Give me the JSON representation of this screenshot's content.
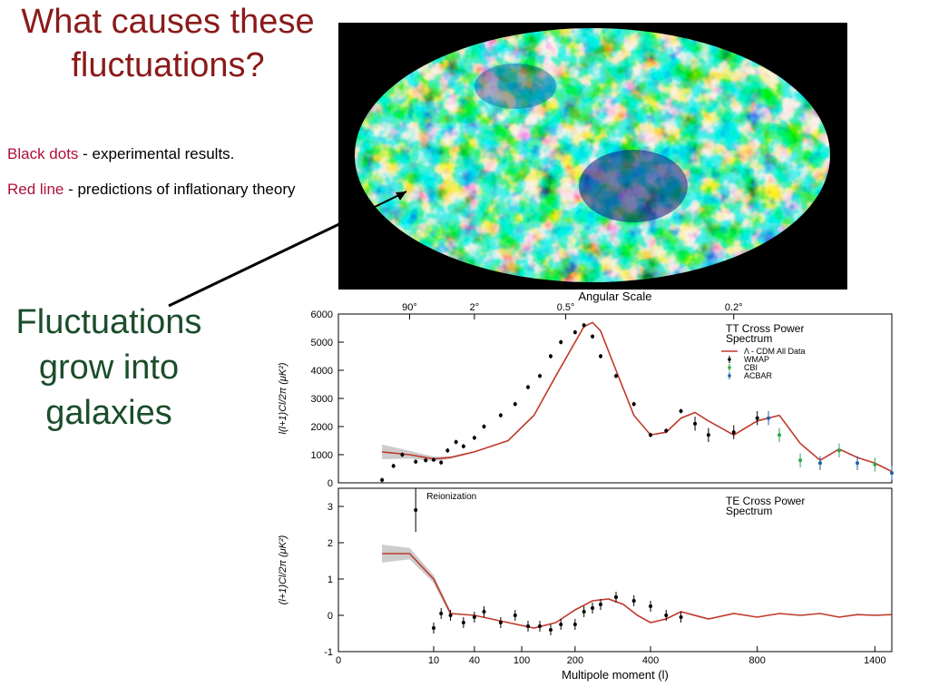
{
  "slide": {
    "title_line1": "What causes these",
    "title_line2": "fluctuations?",
    "legend": [
      {
        "key": "Black dots",
        "desc": " - experimental results."
      },
      {
        "key": "Red line",
        "desc": " - predictions of inflationary theory"
      }
    ],
    "fluct_line1": "Fluctuations",
    "fluct_line2": "grow into",
    "fluct_line3": "galaxies"
  },
  "colors": {
    "title": "#8b1a1a",
    "key": "#b0103a",
    "green_text": "#1b4d2b",
    "theory": "#c0392b"
  },
  "chart_data": [
    {
      "type": "scatter",
      "title": "TT Cross Power Spectrum",
      "top_axis_label": "Angular Scale",
      "top_ticks": [
        "90°",
        "2°",
        "0.5°",
        "0.2°"
      ],
      "ylabel": "l(l+1)Cl/2π (μK²)",
      "ylim": [
        0,
        6000
      ],
      "yticks": [
        "0",
        "1000",
        "2000",
        "3000",
        "4000",
        "5000",
        "6000"
      ],
      "legend_entries": [
        "Λ - CDM All Data",
        "WMAP",
        "CBI",
        "ACBAR"
      ],
      "series": [
        {
          "name": "WMAP",
          "x": [
            2,
            3,
            4,
            6,
            8,
            10,
            14,
            18,
            24,
            30,
            40,
            50,
            70,
            90,
            110,
            130,
            150,
            170,
            200,
            220,
            240,
            260,
            300,
            350,
            400,
            450,
            500,
            550,
            600,
            700,
            800
          ],
          "y": [
            100,
            600,
            1000,
            750,
            800,
            820,
            720,
            1150,
            1450,
            1300,
            1600,
            2000,
            2400,
            2800,
            3400,
            3800,
            4500,
            5000,
            5350,
            5600,
            5200,
            4500,
            3800,
            2800,
            1700,
            1850,
            2550,
            2100,
            1700,
            1800,
            2300
          ]
        },
        {
          "name": "CBI",
          "x": [
            900,
            1000,
            1200,
            1400
          ],
          "y": [
            1700,
            800,
            1150,
            650
          ]
        },
        {
          "name": "ACBAR",
          "x": [
            850,
            1100,
            1300,
            1500
          ],
          "y": [
            2300,
            700,
            700,
            350
          ]
        }
      ],
      "theory": {
        "name": "Λ - CDM All Data",
        "x": [
          2,
          5,
          10,
          20,
          40,
          80,
          120,
          160,
          200,
          220,
          240,
          260,
          300,
          350,
          400,
          450,
          500,
          550,
          600,
          700,
          800,
          900,
          1000,
          1100,
          1200,
          1300,
          1400,
          1500
        ],
        "y": [
          1100,
          1000,
          850,
          900,
          1100,
          1500,
          2400,
          3800,
          5000,
          5550,
          5700,
          5400,
          4000,
          2400,
          1700,
          1800,
          2300,
          2500,
          2200,
          1700,
          2200,
          2400,
          1400,
          800,
          1200,
          900,
          700,
          400
        ]
      }
    },
    {
      "type": "scatter",
      "title": "TE Cross Power Spectrum",
      "annotation": "Reionization",
      "ylabel": "(l+1)Cl/2π (μK²)",
      "xlabel": "Multipole moment (l)",
      "ylim": [
        -1,
        3.5
      ],
      "yticks": [
        "-1",
        "0",
        "1",
        "2",
        "3"
      ],
      "xticks": [
        "0",
        "10",
        "40",
        "100",
        "200",
        "400",
        "800",
        "1400"
      ],
      "series": [
        {
          "name": "WMAP",
          "x": [
            6,
            10,
            14,
            20,
            30,
            40,
            50,
            70,
            90,
            110,
            130,
            150,
            170,
            200,
            220,
            240,
            260,
            300,
            350,
            400,
            450,
            500
          ],
          "y": [
            2.9,
            -0.35,
            0.05,
            0.0,
            -0.2,
            -0.05,
            0.1,
            -0.2,
            0.0,
            -0.3,
            -0.3,
            -0.4,
            -0.25,
            -0.25,
            0.1,
            0.2,
            0.3,
            0.5,
            0.4,
            0.25,
            0.0,
            -0.05
          ]
        }
      ],
      "theory": {
        "x": [
          2,
          5,
          10,
          20,
          40,
          80,
          120,
          160,
          200,
          240,
          280,
          320,
          360,
          400,
          450,
          500,
          600,
          700,
          800,
          900,
          1000,
          1100,
          1200,
          1300,
          1400,
          1500
        ],
        "y": [
          1.7,
          1.7,
          1.0,
          0.05,
          0.0,
          -0.2,
          -0.35,
          -0.2,
          0.15,
          0.4,
          0.45,
          0.3,
          0.0,
          -0.2,
          -0.1,
          0.1,
          -0.1,
          0.05,
          -0.05,
          0.05,
          0.0,
          0.05,
          -0.05,
          0.02,
          0.0,
          0.02
        ]
      }
    }
  ]
}
